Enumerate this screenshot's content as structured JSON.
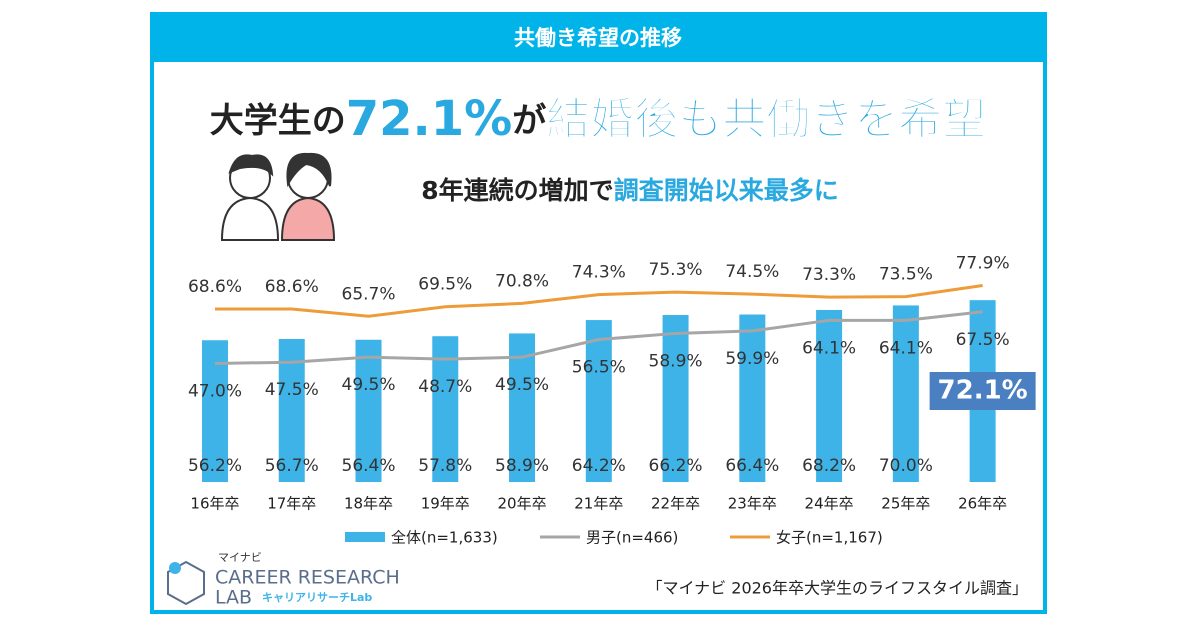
{
  "header": {
    "title": "共働き希望の推移"
  },
  "headline": {
    "parts": [
      "大学生の",
      "72.1%",
      "が",
      "結婚後も共働きを希望"
    ]
  },
  "subtitle": {
    "parts": [
      "8年連続の増加で",
      "調査開始以来最多に"
    ]
  },
  "chart_data": {
    "type": "combo",
    "categories": [
      "16年卒",
      "17年卒",
      "18年卒",
      "19年卒",
      "20年卒",
      "21年卒",
      "22年卒",
      "23年卒",
      "24年卒",
      "25年卒",
      "26年卒"
    ],
    "series": [
      {
        "name": "全体(n=1,633)",
        "type": "bar",
        "color": "#3db3e8",
        "values": [
          56.2,
          56.7,
          56.4,
          57.8,
          58.9,
          64.2,
          66.2,
          66.4,
          68.2,
          70.0,
          72.1
        ],
        "value_labels": [
          "56.2%",
          "56.7%",
          "56.4%",
          "57.8%",
          "58.9%",
          "64.2%",
          "66.2%",
          "66.4%",
          "68.2%",
          "70.0%",
          "72.1%"
        ]
      },
      {
        "name": "男子(n=466)",
        "type": "line",
        "color": "#a6a6a6",
        "values": [
          47.0,
          47.5,
          49.5,
          48.7,
          49.5,
          56.5,
          58.9,
          59.9,
          64.1,
          64.1,
          67.5
        ],
        "value_labels": [
          "47.0%",
          "47.5%",
          "49.5%",
          "48.7%",
          "49.5%",
          "56.5%",
          "58.9%",
          "59.9%",
          "64.1%",
          "64.1%",
          "67.5%"
        ]
      },
      {
        "name": "女子(n=1,167)",
        "type": "line",
        "color": "#ee9b3a",
        "values": [
          68.6,
          68.6,
          65.7,
          69.5,
          70.8,
          74.3,
          75.3,
          74.5,
          73.3,
          73.5,
          77.9
        ],
        "value_labels": [
          "68.6%",
          "68.6%",
          "65.7%",
          "69.5%",
          "70.8%",
          "74.3%",
          "75.3%",
          "74.5%",
          "73.3%",
          "73.5%",
          "77.9%"
        ]
      }
    ],
    "ylim": [
      0,
      90
    ]
  },
  "logo": {
    "brand": "マイナビ",
    "line1": "CAREER RESEARCH",
    "line2": "LAB",
    "tag": "キャリアリサーチLab"
  },
  "source": "「マイナビ 2026年卒大学生のライフスタイル調査」"
}
